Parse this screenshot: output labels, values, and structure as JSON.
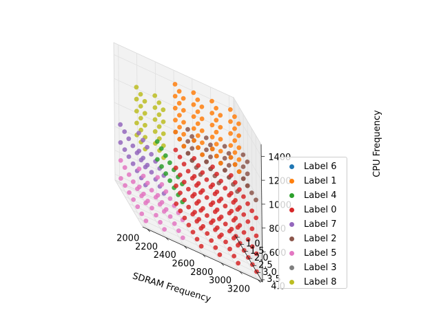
{
  "chart_data": {
    "type": "scatter",
    "title": "",
    "xlabel": "SDRAM Frequency",
    "zlabel": "CPU Frequency",
    "ylabel": "",
    "x_ticks": [
      "2000",
      "2200",
      "2400",
      "2600",
      "2800",
      "3000",
      "3200"
    ],
    "y_ticks": [
      "1.0",
      "1.5",
      "2.0",
      "2.5",
      "3.0",
      "3.5",
      "4.0"
    ],
    "z_ticks": [
      "600",
      "800",
      "1000",
      "1200",
      "1400"
    ],
    "x_grid": [
      2000,
      2200,
      2400,
      2600,
      2800,
      3000,
      3200
    ],
    "y_grid": [
      1.0,
      1.5,
      2.0,
      2.5,
      3.0,
      3.5,
      4.0
    ],
    "z_grid": [
      400,
      600,
      800,
      1000,
      1200,
      1400
    ],
    "xlim": [
      1950,
      3250
    ],
    "ylim": [
      0.85,
      4.15
    ],
    "zlim": [
      350,
      1500
    ],
    "grid": true,
    "legend_position": "right",
    "series": [
      {
        "name": "Label 6",
        "color": "#1f77b4"
      },
      {
        "name": "Label 1",
        "color": "#ff7f0e"
      },
      {
        "name": "Label 4",
        "color": "#2ca02c"
      },
      {
        "name": "Label 0",
        "color": "#d62728"
      },
      {
        "name": "Label 7",
        "color": "#9467bd"
      },
      {
        "name": "Label 2",
        "color": "#8c564b"
      },
      {
        "name": "Label 5",
        "color": "#e377c2"
      },
      {
        "name": "Label 3",
        "color": "#7f7f7f"
      },
      {
        "name": "Label 8",
        "color": "#bcbd22"
      }
    ]
  }
}
